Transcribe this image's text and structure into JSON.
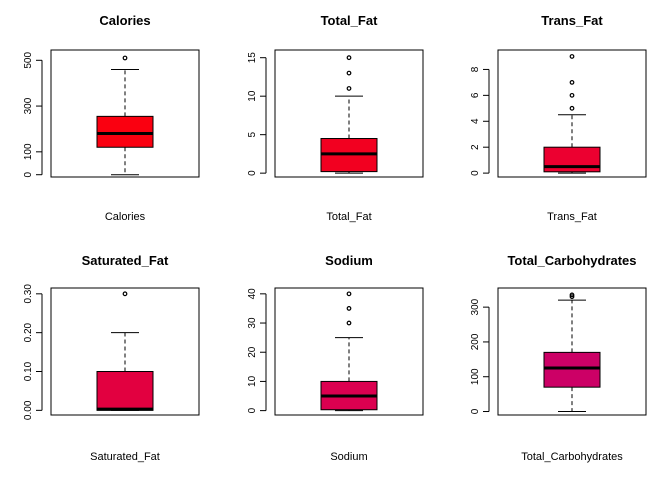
{
  "chart_data": [
    {
      "type": "boxplot",
      "title": "Calories",
      "xlabel": "Calories",
      "color": "#FA0010",
      "ticks": [
        0,
        100,
        300,
        500
      ],
      "ylim": [
        -10,
        545
      ],
      "box": {
        "min": 0,
        "q1": 120,
        "median": 180,
        "q3": 255,
        "max": 460
      },
      "outliers": [
        510
      ]
    },
    {
      "type": "boxplot",
      "title": "Total_Fat",
      "xlabel": "Total_Fat",
      "color": "#F20020",
      "ticks": [
        0,
        5,
        10,
        15
      ],
      "ylim": [
        -0.5,
        16
      ],
      "box": {
        "min": 0,
        "q1": 0.2,
        "median": 2.5,
        "q3": 4.5,
        "max": 10
      },
      "outliers": [
        11,
        13,
        15
      ]
    },
    {
      "type": "boxplot",
      "title": "Trans_Fat",
      "xlabel": "Trans_Fat",
      "color": "#EC0030",
      "ticks": [
        0,
        2,
        4,
        6,
        8
      ],
      "ylim": [
        -0.3,
        9.5
      ],
      "box": {
        "min": 0,
        "q1": 0.1,
        "median": 0.5,
        "q3": 2,
        "max": 4.5
      },
      "outliers": [
        5,
        6,
        7,
        9
      ]
    },
    {
      "type": "boxplot",
      "title": "Saturated_Fat",
      "xlabel": "Saturated_Fat",
      "color": "#E20040",
      "ticks": [
        "0.00",
        "0.10",
        "0.20",
        "0.30"
      ],
      "ylim": [
        -0.012,
        0.315
      ],
      "box": {
        "min": 0,
        "q1": 0,
        "median": 0.003,
        "q3": 0.1,
        "max": 0.2
      },
      "outliers": [
        0.3
      ]
    },
    {
      "type": "boxplot",
      "title": "Sodium",
      "xlabel": "Sodium",
      "color": "#DC0050",
      "ticks": [
        0,
        10,
        20,
        30,
        40
      ],
      "ylim": [
        -1.5,
        42
      ],
      "box": {
        "min": 0,
        "q1": 0.3,
        "median": 5,
        "q3": 10,
        "max": 25
      },
      "outliers": [
        30,
        35,
        40
      ]
    },
    {
      "type": "boxplot",
      "title": "Total_Carbohydrates",
      "xlabel": "Total_Carbohydrates",
      "color": "#CC0066",
      "ticks": [
        0,
        100,
        200,
        300
      ],
      "ylim": [
        -10,
        355
      ],
      "box": {
        "min": 0,
        "q1": 70,
        "median": 125,
        "q3": 170,
        "max": 320
      },
      "outliers": [
        330,
        335
      ]
    }
  ]
}
